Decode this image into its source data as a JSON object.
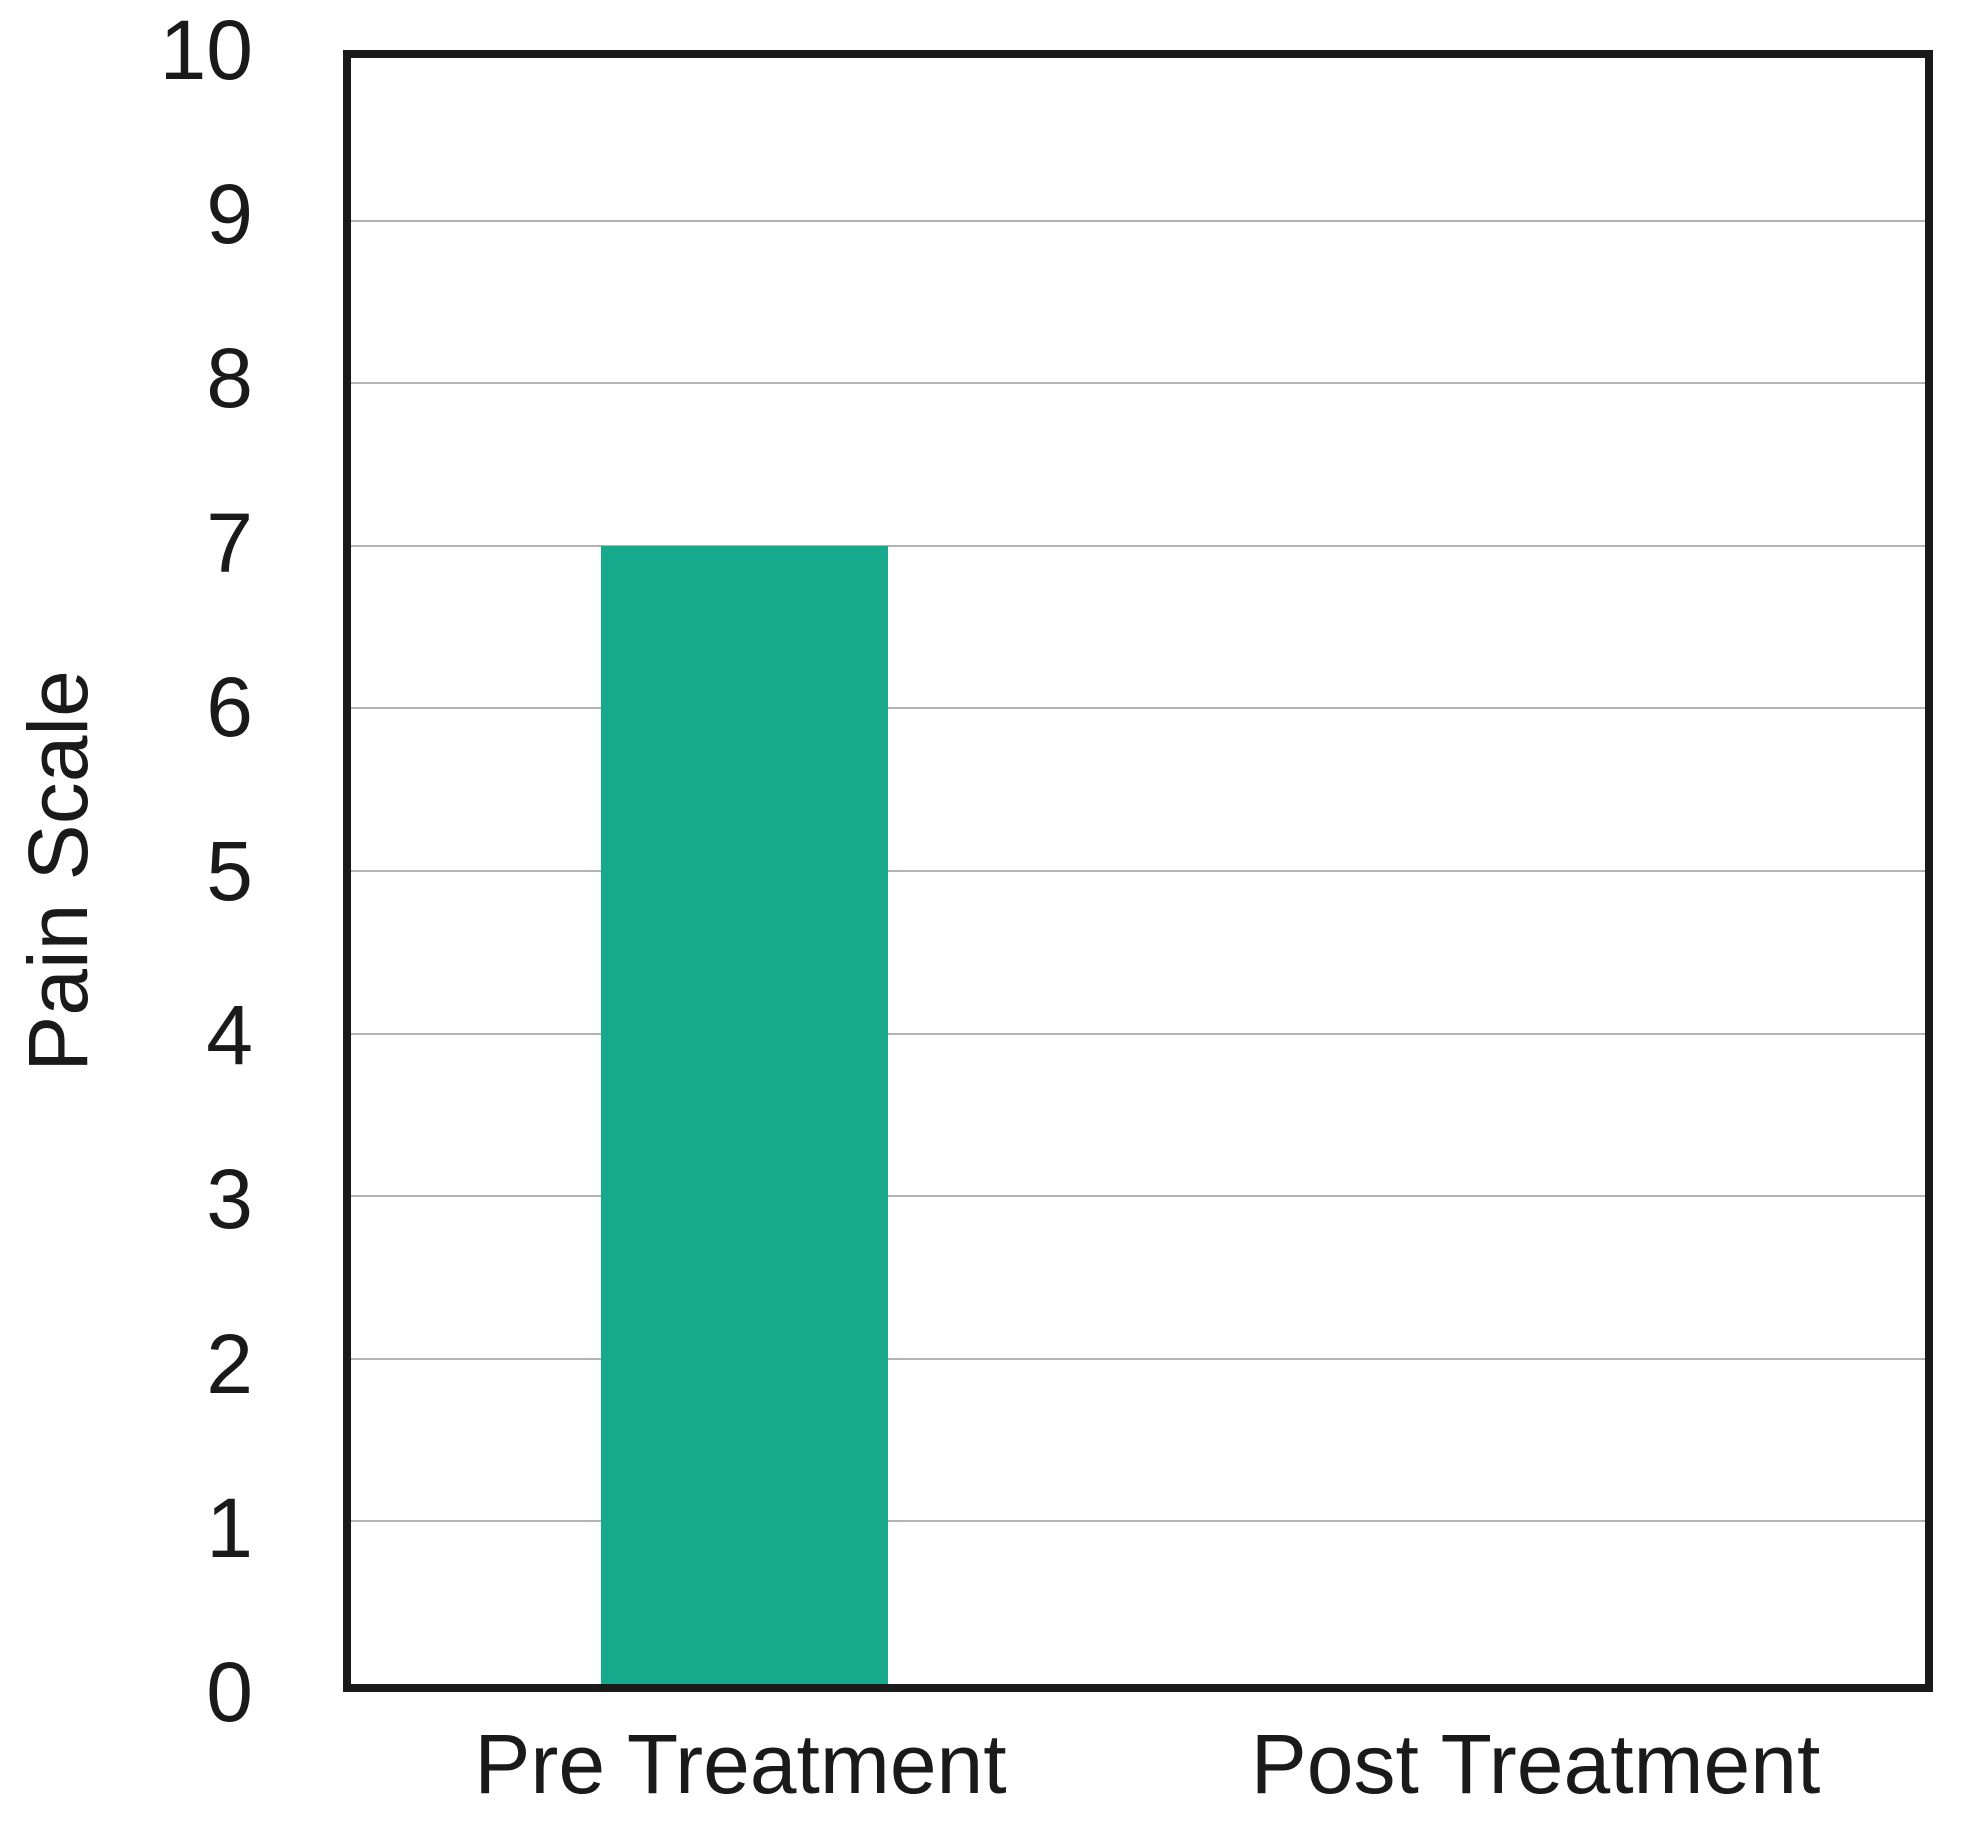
{
  "chart_data": {
    "type": "bar",
    "title": "",
    "xlabel": "",
    "ylabel": "Pain Scale",
    "categories": [
      "Pre Treatment",
      "Post Treatment"
    ],
    "values": [
      7,
      0
    ],
    "ylim": [
      0,
      10
    ],
    "yticks": [
      0,
      1,
      2,
      3,
      4,
      5,
      6,
      7,
      8,
      9,
      10
    ],
    "grid": true,
    "legend": "none",
    "bar_color": "#16A98C",
    "grid_color": "#b3b3b3",
    "frame_color": "#1a1a1a",
    "bar_width_fraction": 0.365
  }
}
